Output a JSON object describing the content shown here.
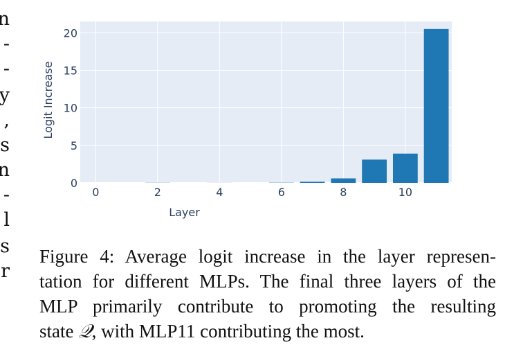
{
  "margin_fragments": [
    "n",
    "-",
    "-",
    "y",
    ",",
    "s",
    "n",
    "-",
    "l",
    "s",
    "r"
  ],
  "figure": {
    "caption_lines": [
      "Figure 4: Average logit increase in the layer represen-",
      "tation for different MLPs. The final three layers of the",
      "MLP primarily contribute to promoting the resulting"
    ],
    "caption_last_prefix": "state ",
    "caption_symbol": "𝒬",
    "caption_last_suffix": ", with MLP11 contributing the most."
  },
  "chart_data": {
    "type": "bar",
    "x": [
      0,
      1,
      2,
      3,
      4,
      5,
      6,
      7,
      8,
      9,
      10,
      11
    ],
    "values": [
      0.0,
      0.0,
      0.02,
      0.0,
      0.01,
      0.0,
      0.03,
      0.15,
      0.6,
      3.1,
      3.9,
      20.5
    ],
    "xlabel": "Layer",
    "ylabel": "Logit Increase",
    "xticks": [
      0,
      2,
      4,
      6,
      8,
      10
    ],
    "yticks": [
      0,
      5,
      10,
      15,
      20
    ],
    "ylim": [
      0,
      21.5
    ],
    "grid": true,
    "colors": {
      "bar": "#1f77b4",
      "plot_bg": "#e5ecf6",
      "grid": "#ffffff"
    }
  }
}
